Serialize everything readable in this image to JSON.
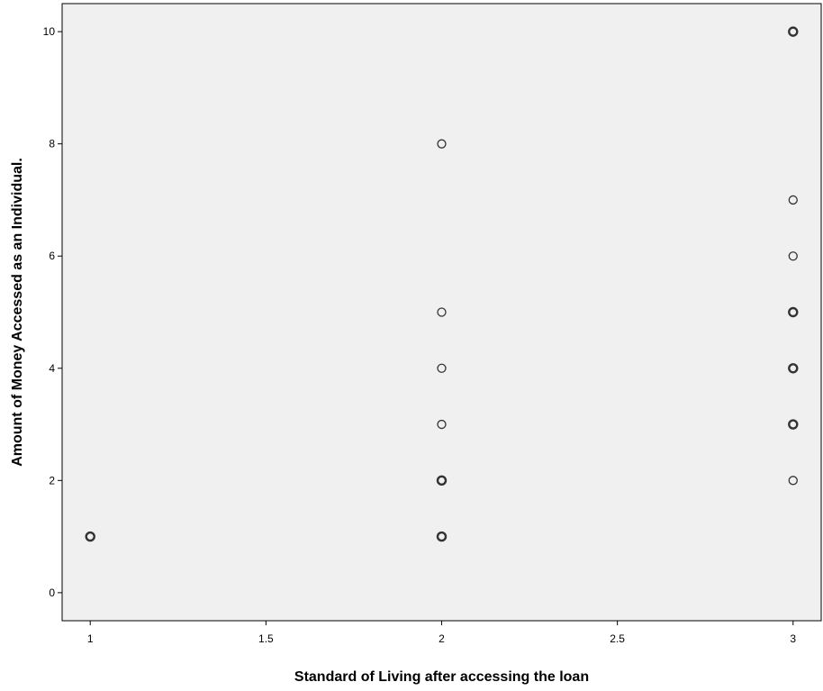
{
  "chart_data": {
    "type": "scatter",
    "title": "",
    "xlabel": "Standard of Living after accessing the loan",
    "ylabel": "Amount of Money Accessed as an Individual.",
    "xlim": [
      0.92,
      3.08
    ],
    "ylim": [
      -0.5,
      10.5
    ],
    "xticks": [
      1,
      1.5,
      2,
      2.5,
      3
    ],
    "xtick_labels": [
      "1",
      "1.5",
      "2",
      "2.5",
      "3"
    ],
    "yticks": [
      0,
      2,
      4,
      6,
      8,
      10
    ],
    "ytick_labels": [
      "0",
      "2",
      "4",
      "6",
      "8",
      "10"
    ],
    "grid": false,
    "background": "#f0f0f0",
    "marker_color": "#333333",
    "points": [
      {
        "x": 1,
        "y": 1,
        "overlap": true
      },
      {
        "x": 2,
        "y": 1,
        "overlap": true
      },
      {
        "x": 2,
        "y": 2,
        "overlap": true
      },
      {
        "x": 2,
        "y": 3,
        "overlap": false
      },
      {
        "x": 2,
        "y": 4,
        "overlap": false
      },
      {
        "x": 2,
        "y": 5,
        "overlap": false
      },
      {
        "x": 2,
        "y": 8,
        "overlap": false
      },
      {
        "x": 3,
        "y": 2,
        "overlap": false
      },
      {
        "x": 3,
        "y": 3,
        "overlap": true
      },
      {
        "x": 3,
        "y": 4,
        "overlap": true
      },
      {
        "x": 3,
        "y": 5,
        "overlap": true
      },
      {
        "x": 3,
        "y": 6,
        "overlap": false
      },
      {
        "x": 3,
        "y": 7,
        "overlap": false
      },
      {
        "x": 3,
        "y": 10,
        "overlap": true
      }
    ]
  }
}
